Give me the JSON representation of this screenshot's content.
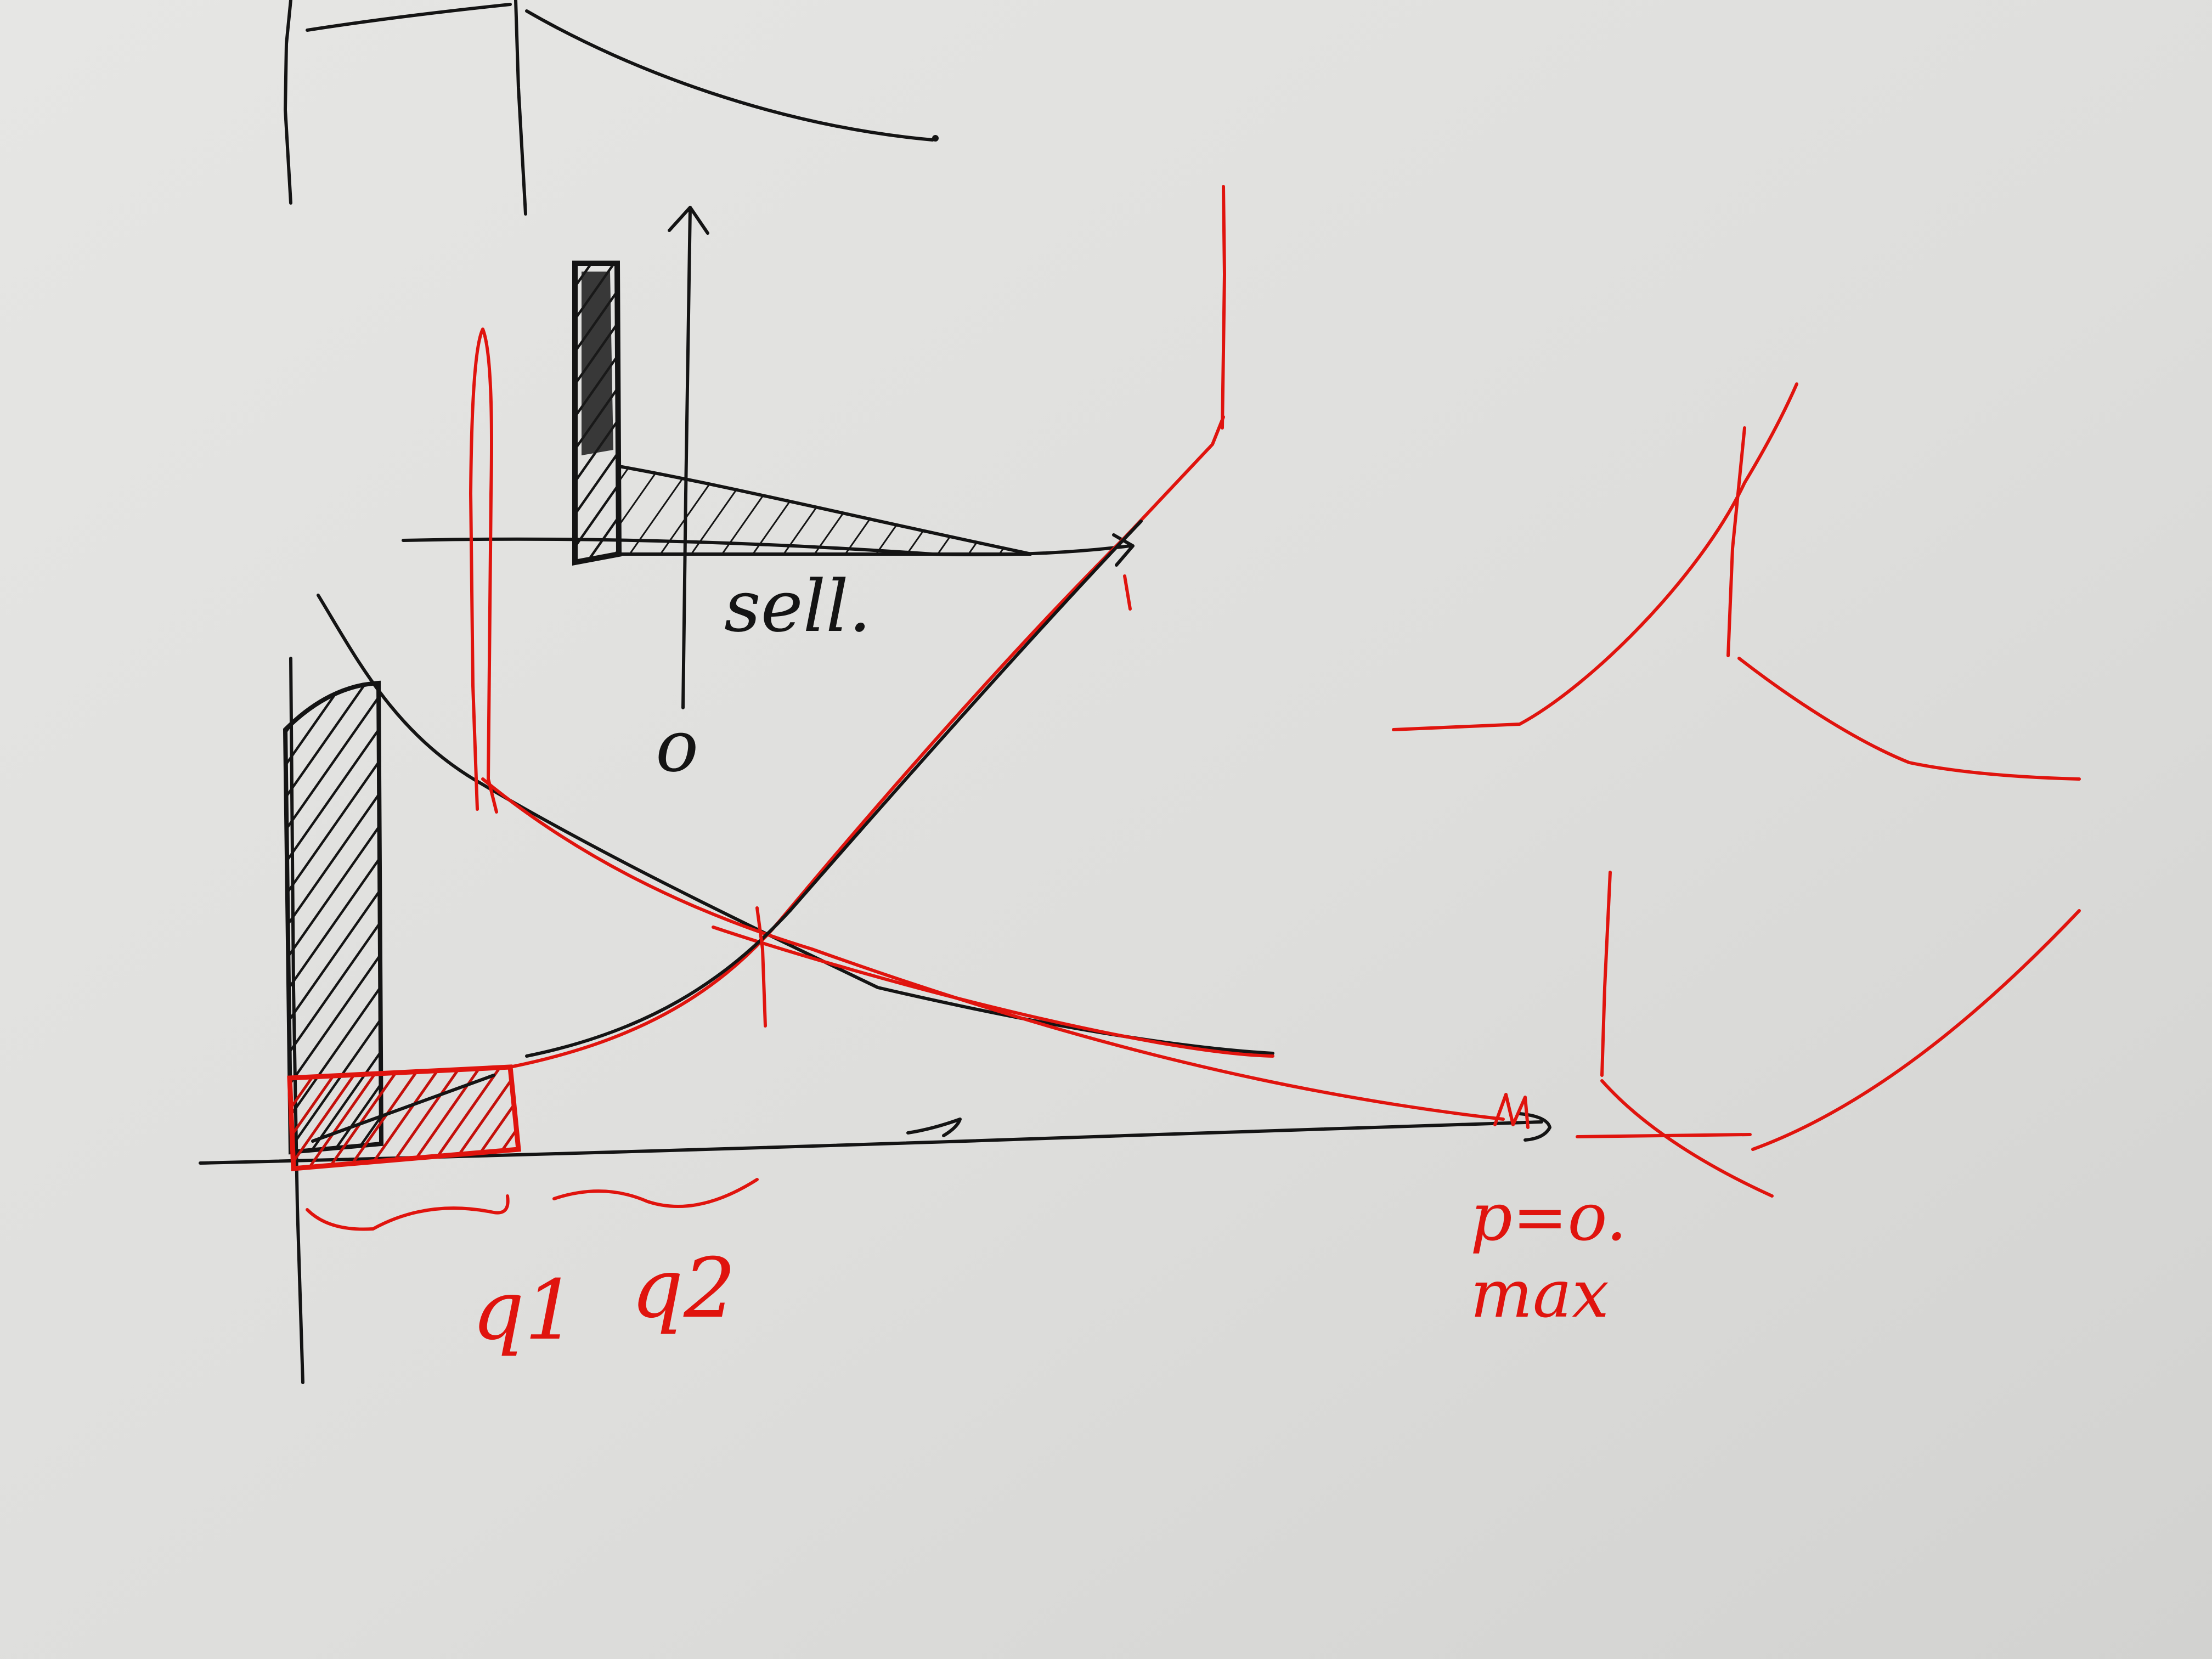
{
  "colors": {
    "paper": "#e2e2e0",
    "black_ink": "#141414",
    "red_ink": "#e0140e"
  },
  "labels": {
    "sell": "sell.",
    "origin_mark": "o",
    "q1": "q1",
    "q2": "q2",
    "p0": "p=o.",
    "max": "max"
  }
}
